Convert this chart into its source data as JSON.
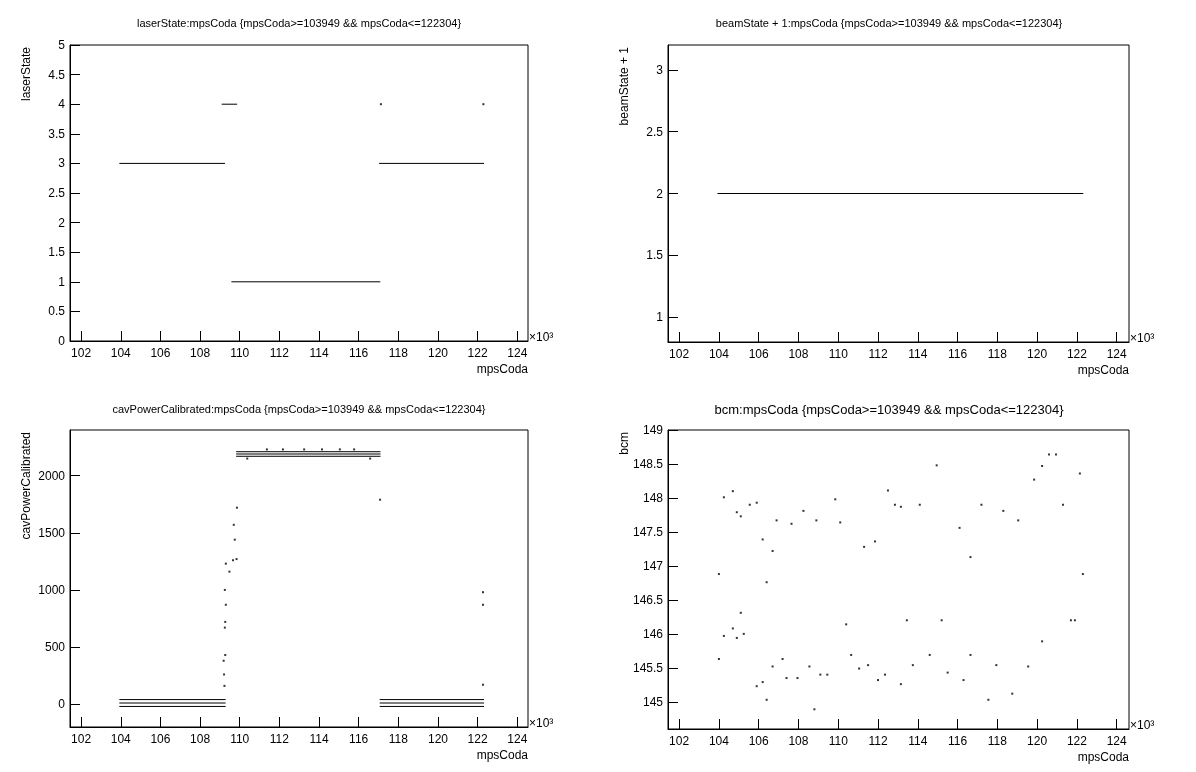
{
  "chart_data": [
    {
      "type": "scatter",
      "title": "laserState:mpsCoda {mpsCoda>=103949 && mpsCoda<=122304}",
      "xlabel": "mpsCoda",
      "ylabel": "laserState",
      "annotations": [
        "×10³"
      ],
      "marker": "square",
      "xlim": [
        101.44,
        124.54
      ],
      "xticks": [
        102,
        104,
        106,
        108,
        110,
        112,
        114,
        116,
        118,
        120,
        122,
        124
      ],
      "ylim": [
        0,
        5
      ],
      "yticks": [
        0,
        0.5,
        1,
        1.5,
        2,
        2.5,
        3,
        3.5,
        4,
        4.5,
        5
      ],
      "series": [
        {
          "type": "line",
          "marker": "none",
          "color": "#000000",
          "x": [
            103.949,
            109.24
          ],
          "values": [
            3,
            3
          ]
        },
        {
          "type": "line",
          "marker": "none",
          "color": "#000000",
          "x": [
            109.11,
            109.85
          ],
          "values": [
            4,
            4
          ]
        },
        {
          "type": "line",
          "marker": "none",
          "color": "#000000",
          "x": [
            109.6,
            117.07
          ],
          "values": [
            1,
            1
          ]
        },
        {
          "type": "line",
          "marker": "none",
          "color": "#000000",
          "x": [
            117.05,
            122.304
          ],
          "values": [
            3,
            3
          ]
        },
        {
          "type": "scatter",
          "color": "#000000",
          "x": [
            117.12,
            122.29
          ],
          "values": [
            4,
            4
          ]
        }
      ]
    },
    {
      "type": "scatter",
      "title": "beamState + 1:mpsCoda {mpsCoda>=103949 && mpsCoda<=122304}",
      "xlabel": "mpsCoda",
      "ylabel": "beamState + 1",
      "annotations": [
        "×10³"
      ],
      "xlim": [
        101.44,
        124.62
      ],
      "xticks": [
        102,
        104,
        106,
        108,
        110,
        112,
        114,
        116,
        118,
        120,
        122,
        124
      ],
      "ylim": [
        0.8,
        3.2
      ],
      "yticks": [
        1,
        1.5,
        2,
        2.5,
        3
      ],
      "series": [
        {
          "type": "line",
          "marker": "none",
          "color": "#000000",
          "x": [
            103.949,
            122.304
          ],
          "values": [
            2,
            2
          ]
        }
      ]
    },
    {
      "type": "scatter",
      "title": "cavPowerCalibrated:mpsCoda {mpsCoda>=103949 && mpsCoda<=122304}",
      "xlabel": "mpsCoda",
      "ylabel": "cavPowerCalibrated",
      "annotations": [
        "×10³"
      ],
      "marker": "square",
      "xlim": [
        101.44,
        124.54
      ],
      "xticks": [
        102,
        104,
        106,
        108,
        110,
        112,
        114,
        116,
        118,
        120,
        122,
        124
      ],
      "ylim": [
        -200,
        2400
      ],
      "yticks": [
        0,
        500,
        1000,
        1500,
        2000
      ],
      "series": [
        {
          "type": "line",
          "marker": "none",
          "color": "#000000",
          "x": [
            103.949,
            109.27
          ],
          "values": [
            40,
            40
          ]
        },
        {
          "type": "line",
          "marker": "none",
          "color": "#000000",
          "x": [
            103.949,
            109.27
          ],
          "values": [
            10,
            10
          ]
        },
        {
          "type": "line",
          "marker": "none",
          "color": "#000000",
          "x": [
            103.949,
            109.27
          ],
          "values": [
            -20,
            -20
          ]
        },
        {
          "type": "line",
          "marker": "none",
          "color": "#000000",
          "x": [
            109.84,
            117.08
          ],
          "values": [
            2210,
            2210
          ]
        },
        {
          "type": "line",
          "marker": "none",
          "color": "#000000",
          "x": [
            109.84,
            117.08
          ],
          "values": [
            2190,
            2190
          ]
        },
        {
          "type": "line",
          "marker": "none",
          "color": "#000000",
          "x": [
            109.84,
            117.08
          ],
          "values": [
            2170,
            2170
          ]
        },
        {
          "type": "line",
          "marker": "none",
          "color": "#000000",
          "x": [
            117.08,
            122.304
          ],
          "values": [
            40,
            40
          ]
        },
        {
          "type": "line",
          "marker": "none",
          "color": "#000000",
          "x": [
            117.08,
            122.304
          ],
          "values": [
            10,
            10
          ]
        },
        {
          "type": "line",
          "marker": "none",
          "color": "#000000",
          "x": [
            117.08,
            122.304
          ],
          "values": [
            -20,
            -20
          ]
        },
        {
          "type": "scatter",
          "color": "#000000",
          "x": [
            109.25,
            109.3,
            109.27,
            109.25,
            109.27,
            109.19,
            109.21,
            109.23,
            109.3,
            109.48,
            109.66,
            109.75,
            109.7,
            109.84,
            109.86,
            110.38,
            117.08,
            116.58,
            122.27,
            122.27,
            122.27,
            111.37,
            112.18,
            113.25,
            114.15,
            115.05,
            115.77
          ],
          "values": [
            1000,
            870,
            720,
            670,
            430,
            380,
            260,
            160,
            1230,
            1160,
            1260,
            1440,
            1570,
            1270,
            1720,
            2150,
            1790,
            2150,
            980,
            870,
            170,
            2230,
            2230,
            2230,
            2230,
            2230,
            2230
          ]
        }
      ]
    },
    {
      "type": "scatter",
      "title": "bcm:mpsCoda {mpsCoda>=103949 && mpsCoda<=122304}",
      "xlabel": "mpsCoda",
      "ylabel": "bcm",
      "annotations": [
        "×10³"
      ],
      "marker": "square",
      "xlim": [
        101.44,
        124.62
      ],
      "xticks": [
        102,
        104,
        106,
        108,
        110,
        112,
        114,
        116,
        118,
        120,
        122,
        124
      ],
      "ylim": [
        144.6,
        149
      ],
      "yticks": [
        145,
        145.5,
        146,
        146.5,
        147,
        147.5,
        148,
        148.5,
        149
      ],
      "series": [
        {
          "color": "#000000",
          "x": [
            104.0,
            104.0,
            104.25,
            104.25,
            104.7,
            104.7,
            104.9,
            104.9,
            105.1,
            105.1,
            105.25,
            105.55,
            105.9,
            105.9,
            106.2,
            106.2,
            106.4,
            106.4,
            106.7,
            106.7,
            106.9,
            107.2,
            107.4,
            107.65,
            107.95,
            108.25,
            108.55,
            108.8,
            108.9,
            109.1,
            109.45,
            109.85,
            110.1,
            110.4,
            110.65,
            111.05,
            111.3,
            111.5,
            111.85,
            112.0,
            112.35,
            112.5,
            112.85,
            113.15,
            113.15,
            113.45,
            113.75,
            114.1,
            114.6,
            114.95,
            115.2,
            115.5,
            116.1,
            116.3,
            116.65,
            116.65,
            117.2,
            117.55,
            117.95,
            118.3,
            118.75,
            119.05,
            119.55,
            119.85,
            120.25,
            120.25,
            120.6,
            120.95,
            121.3,
            121.7,
            121.9,
            122.15,
            122.3
          ],
          "values": [
            146.88,
            145.63,
            148.01,
            145.97,
            148.1,
            146.08,
            147.79,
            145.94,
            147.73,
            146.31,
            146.0,
            147.9,
            147.93,
            145.23,
            147.39,
            145.29,
            146.76,
            145.03,
            147.22,
            145.52,
            147.67,
            145.63,
            145.35,
            147.62,
            145.35,
            147.81,
            145.52,
            144.89,
            147.67,
            145.4,
            145.4,
            147.98,
            147.64,
            146.14,
            145.69,
            145.49,
            147.28,
            145.54,
            147.36,
            145.32,
            145.4,
            148.11,
            147.9,
            147.87,
            145.26,
            146.2,
            145.54,
            147.9,
            145.69,
            148.48,
            146.2,
            145.43,
            147.56,
            145.32,
            147.13,
            145.69,
            147.9,
            145.03,
            145.54,
            147.81,
            145.12,
            147.67,
            145.52,
            148.27,
            148.47,
            145.89,
            148.64,
            148.64,
            147.9,
            146.2,
            146.2,
            148.36,
            146.88
          ]
        }
      ]
    }
  ]
}
